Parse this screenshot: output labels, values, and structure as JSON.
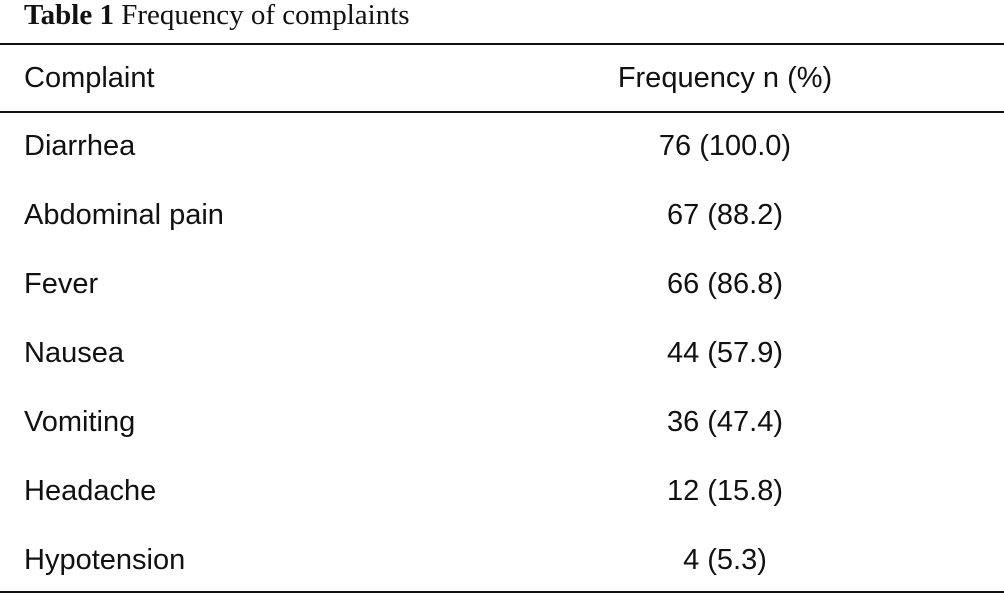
{
  "caption": {
    "label": "Table 1",
    "text": "Frequency of complaints"
  },
  "table": {
    "headers": [
      "Complaint",
      "Frequency n (%)"
    ],
    "rows": [
      {
        "complaint": "Diarrhea",
        "frequency": "76 (100.0)"
      },
      {
        "complaint": "Abdominal pain",
        "frequency": "67 (88.2)"
      },
      {
        "complaint": "Fever",
        "frequency": "66 (86.8)"
      },
      {
        "complaint": "Nausea",
        "frequency": "44 (57.9)"
      },
      {
        "complaint": "Vomiting",
        "frequency": "36 (47.4)"
      },
      {
        "complaint": "Headache",
        "frequency": "12 (15.8)"
      },
      {
        "complaint": "Hypotension",
        "frequency": "4 (5.3)"
      }
    ]
  }
}
